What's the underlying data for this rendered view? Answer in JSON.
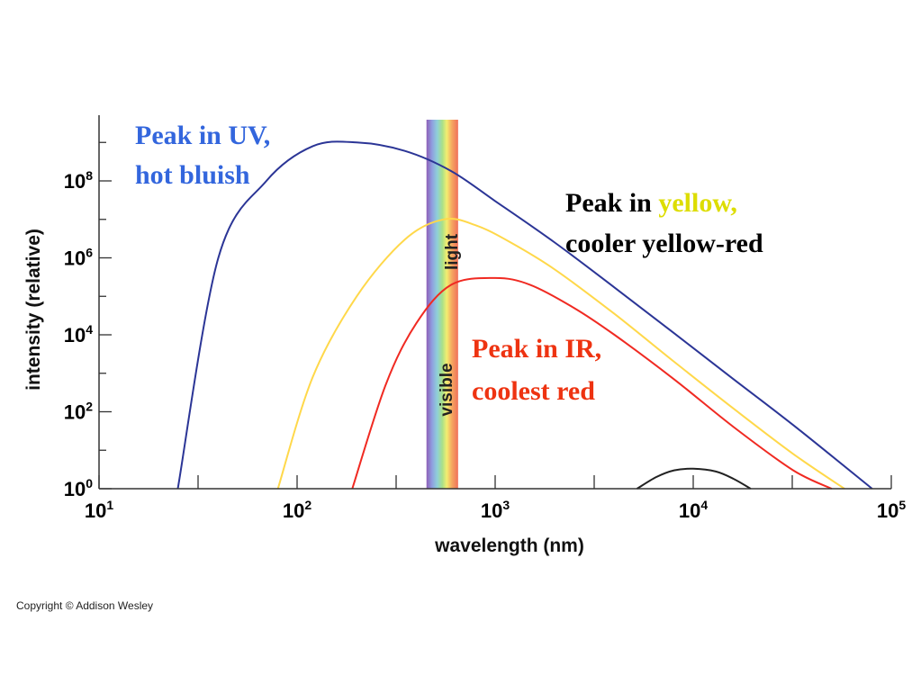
{
  "chart_data": {
    "type": "line",
    "title": "",
    "xlabel": "wavelength (nm)",
    "ylabel": "intensity (relative)",
    "x_scale": "log",
    "y_scale": "log",
    "xlim": [
      10,
      100000
    ],
    "ylim": [
      1,
      3000000000
    ],
    "x_ticks": [
      {
        "base": "10",
        "exp": "1",
        "value": 10
      },
      {
        "base": "10",
        "exp": "2",
        "value": 100
      },
      {
        "base": "10",
        "exp": "3",
        "value": 1000
      },
      {
        "base": "10",
        "exp": "4",
        "value": 10000
      },
      {
        "base": "10",
        "exp": "5",
        "value": 100000
      }
    ],
    "y_ticks": [
      {
        "base": "10",
        "exp": "0",
        "value": 1
      },
      {
        "base": "10",
        "exp": "2",
        "value": 100
      },
      {
        "base": "10",
        "exp": "4",
        "value": 10000
      },
      {
        "base": "10",
        "exp": "6",
        "value": 1000000
      },
      {
        "base": "10",
        "exp": "8",
        "value": 100000000
      }
    ],
    "grid": false,
    "series": [
      {
        "color": "#2b3596",
        "x": [
          25,
          40,
          70,
          120,
          200,
          350,
          600,
          1000,
          2000,
          4000,
          8000,
          16000,
          32000,
          80000
        ],
        "y": [
          1,
          1000000,
          100000000,
          800000000,
          1000000000,
          600000000,
          180000000,
          30000000,
          2500000,
          170000,
          11000,
          700,
          45,
          1
        ]
      },
      {
        "color": "#ffd84a",
        "x": [
          80,
          120,
          200,
          350,
          550,
          800,
          1200,
          2000,
          4000,
          8000,
          16000,
          32000,
          58000
        ],
        "y": [
          1,
          800,
          100000,
          3000000,
          10000000,
          7000000,
          2500000,
          500000,
          35000,
          2000,
          120,
          8,
          1
        ]
      },
      {
        "color": "#f02a22",
        "x": [
          190,
          280,
          400,
          600,
          1000,
          1500,
          2500,
          4000,
          8000,
          16000,
          32000,
          50000
        ],
        "y": [
          1,
          500,
          20000,
          200000,
          300000,
          200000,
          50000,
          10000,
          700,
          40,
          3,
          1
        ]
      },
      {
        "color": "#222222",
        "x": [
          5200,
          6500,
          8000,
          10000,
          13000,
          16000,
          19500
        ],
        "y": [
          1,
          2,
          3,
          3.3,
          2.8,
          1.8,
          1
        ]
      }
    ],
    "visible_band": {
      "x_range": [
        450,
        650
      ],
      "label_top": "light",
      "label_bottom": "visible"
    }
  },
  "annotations": {
    "hot": {
      "line1": "Peak in UV,",
      "line2": "hot bluish",
      "color": "#3366dd"
    },
    "warm": {
      "line1a": "Peak in ",
      "line1b": "yellow,",
      "line2": "cooler yellow-red",
      "color": "#000000",
      "highlight_color": "#dddd00"
    },
    "cool": {
      "line1": "Peak in IR,",
      "line2": "coolest red",
      "color": "#ee3311"
    }
  },
  "copyright": "Copyright © Addison Wesley"
}
